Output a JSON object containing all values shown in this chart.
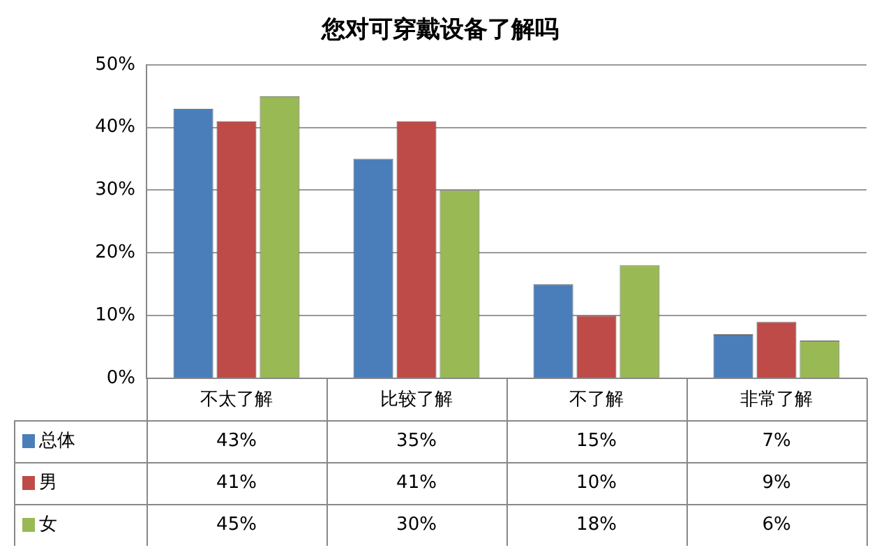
{
  "chart_data": {
    "type": "bar",
    "title": "您对可穿戴设备了解吗",
    "categories": [
      "不太了解",
      "比较了解",
      "不了解",
      "非常了解"
    ],
    "series": [
      {
        "name": "总体",
        "color": "#4a7ebb",
        "values": [
          43,
          35,
          15,
          7
        ],
        "value_labels": [
          "43%",
          "35%",
          "15%",
          "7%"
        ]
      },
      {
        "name": "男",
        "color": "#be4b48",
        "values": [
          41,
          41,
          10,
          9
        ],
        "value_labels": [
          "41%",
          "41%",
          "10%",
          "9%"
        ]
      },
      {
        "name": "女",
        "color": "#98b954",
        "values": [
          45,
          30,
          18,
          6
        ],
        "value_labels": [
          "45%",
          "30%",
          "18%",
          "6%"
        ]
      }
    ],
    "ylim": [
      0,
      50
    ],
    "yticks": [
      {
        "value": 0,
        "label": "0%"
      },
      {
        "value": 10,
        "label": "10%"
      },
      {
        "value": 20,
        "label": "20%"
      },
      {
        "value": 30,
        "label": "30%"
      },
      {
        "value": 40,
        "label": "40%"
      },
      {
        "value": 50,
        "label": "50%"
      }
    ],
    "grid": "y",
    "legend": "bottom"
  }
}
